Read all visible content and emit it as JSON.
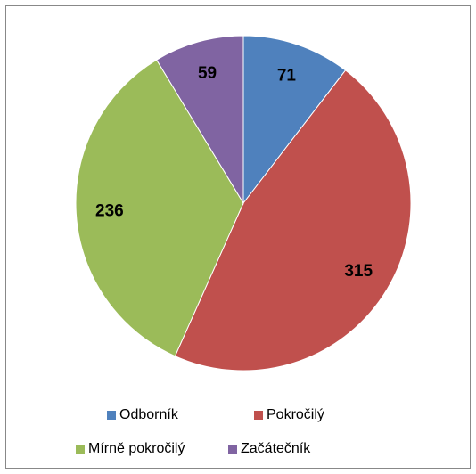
{
  "chart_data": {
    "type": "pie",
    "categories": [
      "Odborník",
      "Pokročilý",
      "Mírně pokročilý",
      "Začátečník"
    ],
    "values": [
      71,
      315,
      236,
      59
    ],
    "colors": [
      "#4f81bd",
      "#c0504d",
      "#9bbb59",
      "#8064a2"
    ],
    "legend": "bottom"
  }
}
